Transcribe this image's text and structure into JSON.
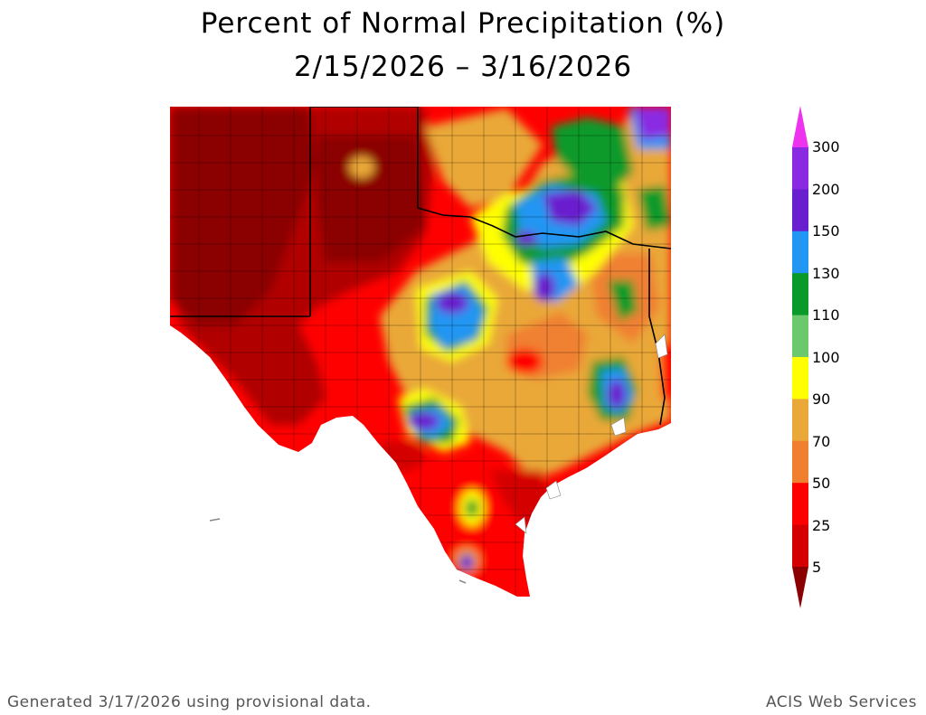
{
  "title": "Percent of Normal Precipitation (%)",
  "date_range": "2/15/2026 – 3/16/2026",
  "footer_left": "Generated 3/17/2026  using provisional data.",
  "footer_right": "ACIS Web Services",
  "legend": {
    "labels": [
      "300",
      "200",
      "150",
      "130",
      "110",
      "100",
      "90",
      "70",
      "50",
      "25",
      "5"
    ],
    "colors": [
      "#ee33ee",
      "#8a2be2",
      "#6a1fcf",
      "#2196f3",
      "#0a9a2a",
      "#6cc86c",
      "#ffff00",
      "#e9a838",
      "#f08030",
      "#ff0000",
      "#d40000",
      "#8b0000"
    ]
  }
}
